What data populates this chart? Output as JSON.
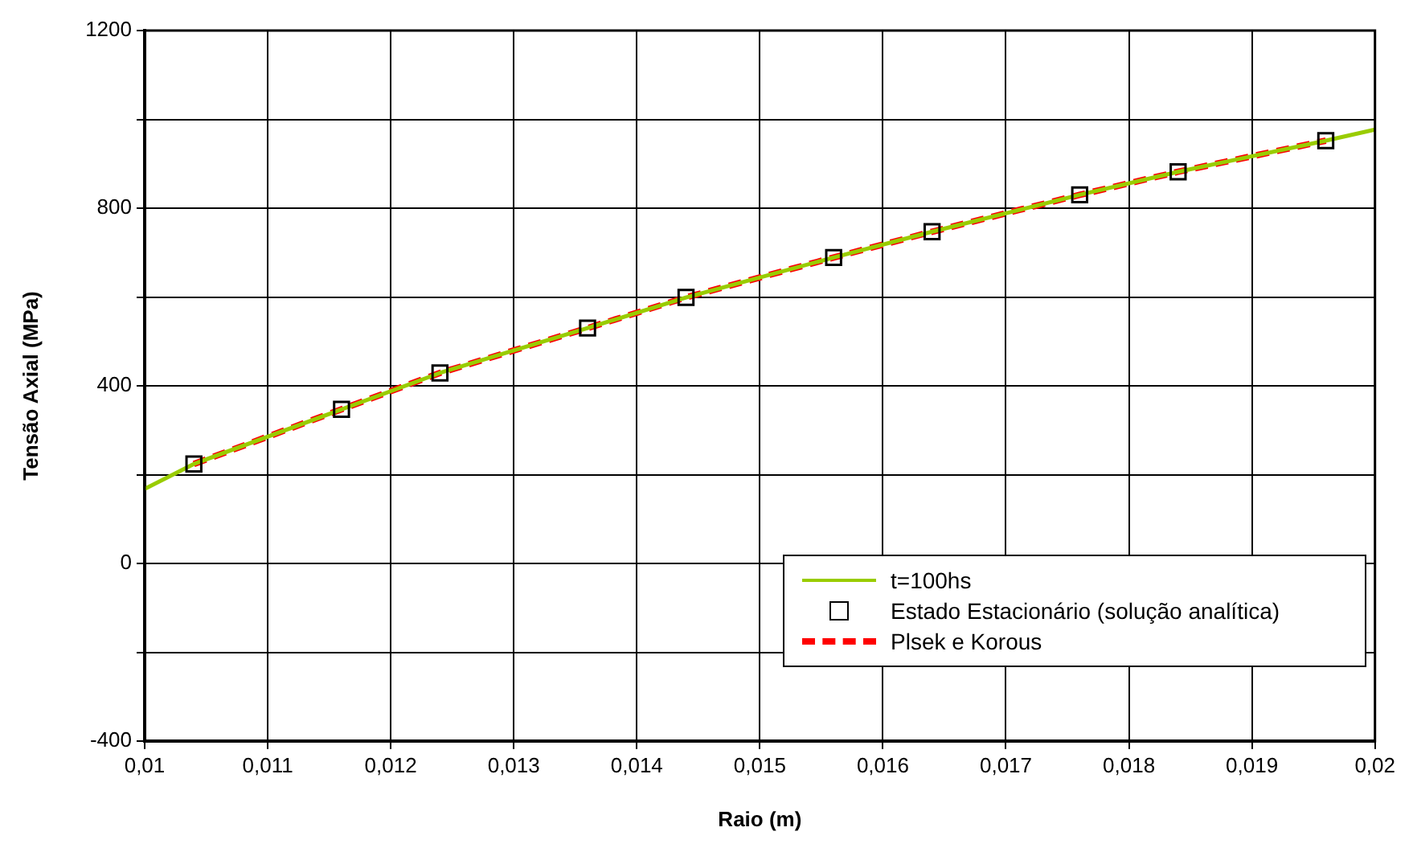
{
  "chart_data": {
    "type": "line",
    "xlabel": "Raio (m)",
    "ylabel": "Tensão Axial (MPa)",
    "xlim": [
      0.01,
      0.02
    ],
    "ylim": [
      -400,
      1200
    ],
    "xticks": [
      {
        "value": 0.01,
        "label": "0,01"
      },
      {
        "value": 0.011,
        "label": "0,011"
      },
      {
        "value": 0.012,
        "label": "0,012"
      },
      {
        "value": 0.013,
        "label": "0,013"
      },
      {
        "value": 0.014,
        "label": "0,014"
      },
      {
        "value": 0.015,
        "label": "0,015"
      },
      {
        "value": 0.016,
        "label": "0,016"
      },
      {
        "value": 0.017,
        "label": "0,017"
      },
      {
        "value": 0.018,
        "label": "0,018"
      },
      {
        "value": 0.019,
        "label": "0,019"
      },
      {
        "value": 0.02,
        "label": "0,02"
      }
    ],
    "yticks": [
      -400,
      {
        "value": -200,
        "label": null
      },
      0,
      {
        "value": 200,
        "label": null
      },
      400,
      {
        "value": 600,
        "label": null
      },
      800,
      {
        "value": 1000,
        "label": null
      },
      1200
    ],
    "grid": true,
    "legend": "bottom right",
    "series": [
      {
        "name": "t=100hs",
        "type": "line",
        "color": "#99cc00",
        "marker": "none",
        "line_style": "solid",
        "x": [
          0.01,
          0.0104,
          0.0116,
          0.0124,
          0.0136,
          0.0144,
          0.0156,
          0.0164,
          0.0176,
          0.0184,
          0.0196,
          0.02
        ],
        "values": [
          168,
          224,
          347,
          429,
          530,
          599,
          689,
          747,
          830,
          882,
          952,
          977
        ]
      },
      {
        "name": "Estado Estacionário (solução analítica)",
        "type": "scatter",
        "color": "#000000",
        "marker": "square",
        "x": [
          0.0104,
          0.0116,
          0.0124,
          0.0136,
          0.0144,
          0.0156,
          0.0164,
          0.0176,
          0.0184,
          0.0196
        ],
        "values": [
          224,
          347,
          429,
          530,
          599,
          689,
          747,
          830,
          882,
          952
        ]
      },
      {
        "name": "Plsek e Korous",
        "type": "line",
        "color": "#ff0000",
        "marker": "none",
        "line_style": "dashed",
        "x": [
          0.0104,
          0.0116,
          0.0124,
          0.0136,
          0.0144,
          0.0156,
          0.0164,
          0.0176,
          0.0184,
          0.0196
        ],
        "values": [
          224,
          347,
          429,
          530,
          599,
          689,
          747,
          830,
          882,
          952
        ]
      }
    ]
  }
}
